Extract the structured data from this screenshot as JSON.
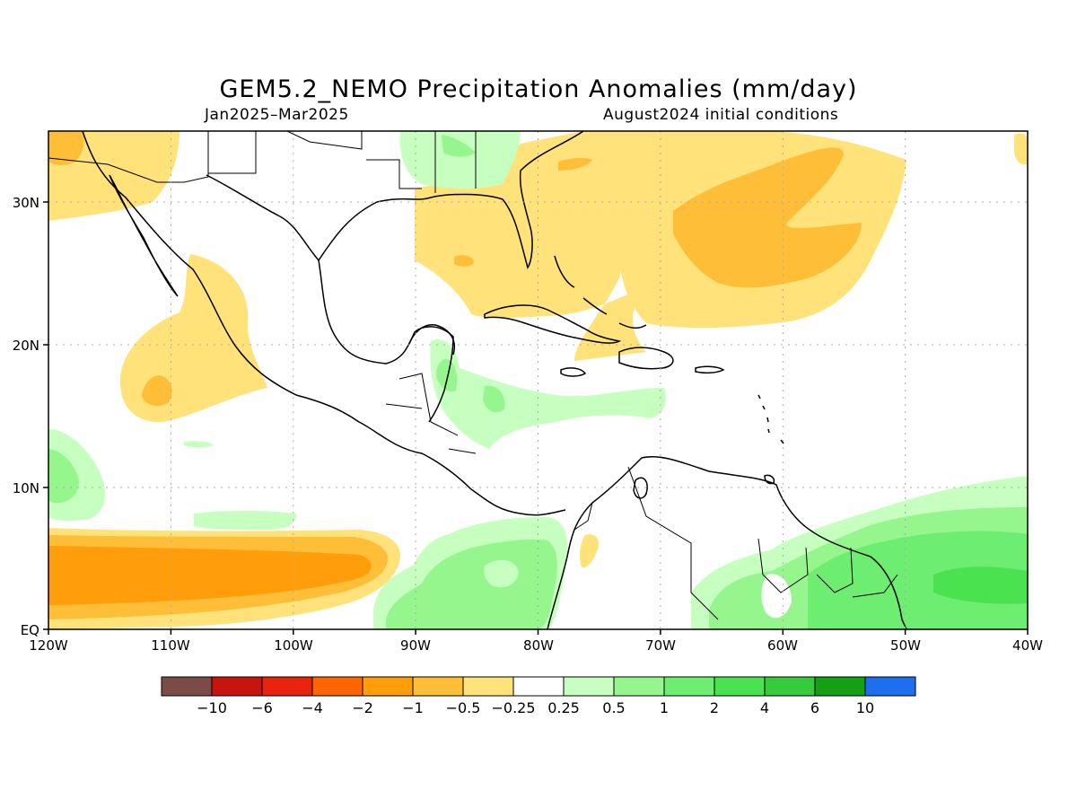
{
  "title": "GEM5.2_NEMO Precipitation Anomalies (mm/day)",
  "period": "Jan2025–Mar2025",
  "init": "August2024 initial conditions",
  "axes": {
    "lon_labels": [
      "120W",
      "110W",
      "100W",
      "90W",
      "80W",
      "70W",
      "60W",
      "50W",
      "40W"
    ],
    "lat_labels": [
      "EQ",
      "10N",
      "20N",
      "30N"
    ]
  },
  "colorbar": {
    "colors": [
      "#7b4b45",
      "#c8140f",
      "#e8240e",
      "#ff6602",
      "#ff9e0a",
      "#ffbe37",
      "#ffe27a",
      "#ffffff",
      "#c6ffc0",
      "#96f68e",
      "#6eee70",
      "#4be24f",
      "#37ca3c",
      "#14a014",
      "#1e6ef0"
    ],
    "labels": [
      "−10",
      "−6",
      "−4",
      "−2",
      "−1",
      "−0.5",
      "−0.25",
      "0.25",
      "0.5",
      "1",
      "2",
      "4",
      "6",
      "10"
    ]
  }
}
